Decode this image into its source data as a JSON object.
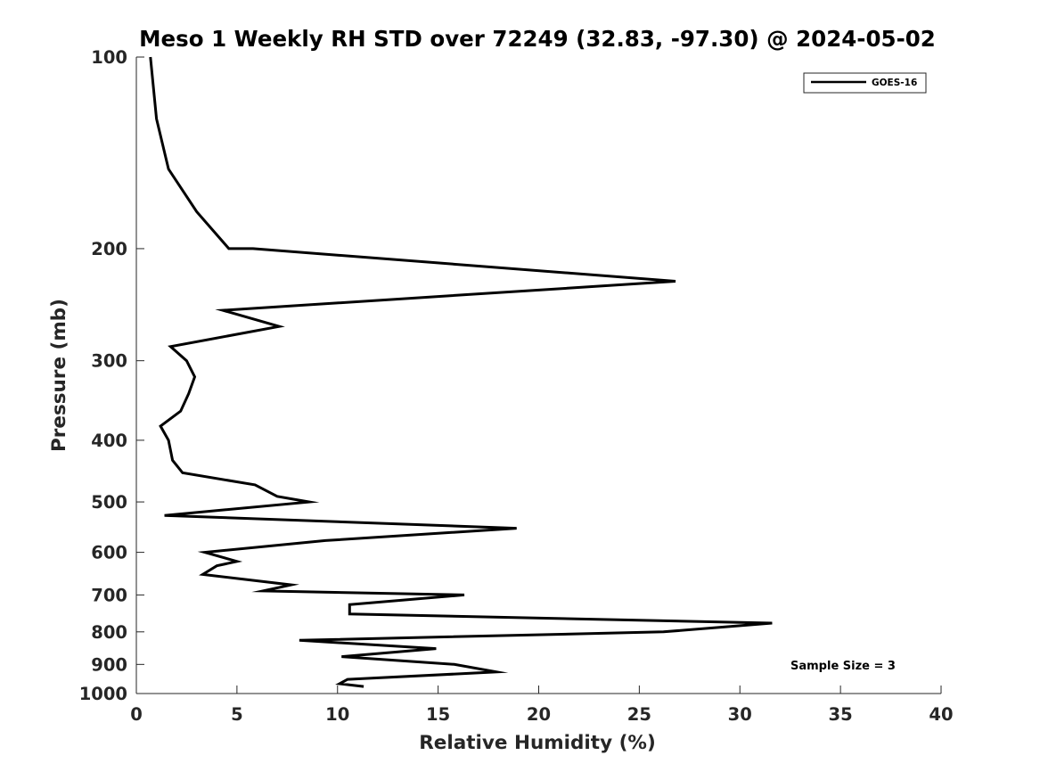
{
  "chart_data": {
    "type": "line",
    "title": "Meso 1 Weekly RH STD over 72249 (32.83, -97.30) @ 2024-05-02",
    "xlabel": "Relative Humidity (%)",
    "ylabel": "Pressure (mb)",
    "xlim": [
      0,
      40
    ],
    "ylim": [
      100,
      1000
    ],
    "yscale": "log",
    "y_reversed": true,
    "xticks": [
      "0",
      "5",
      "10",
      "15",
      "20",
      "25",
      "30",
      "35",
      "40"
    ],
    "yticks": [
      "100",
      "200",
      "300",
      "400",
      "500",
      "600",
      "700",
      "800",
      "900",
      "1000"
    ],
    "grid": false,
    "legend_position": "top-right",
    "annotation": "Sample Size = 3",
    "series": [
      {
        "name": "GOES-16",
        "color": "#000000",
        "points": [
          [
            0.7,
            100
          ],
          [
            1.0,
            125
          ],
          [
            1.6,
            150
          ],
          [
            3.0,
            175
          ],
          [
            4.6,
            200
          ],
          [
            5.8,
            200
          ],
          [
            26.8,
            225
          ],
          [
            4.3,
            250
          ],
          [
            7.1,
            265
          ],
          [
            1.7,
            285
          ],
          [
            2.5,
            300
          ],
          [
            2.9,
            318
          ],
          [
            2.6,
            338
          ],
          [
            2.2,
            360
          ],
          [
            1.2,
            380
          ],
          [
            1.6,
            400
          ],
          [
            1.8,
            430
          ],
          [
            2.3,
            450
          ],
          [
            5.9,
            470
          ],
          [
            7.0,
            490
          ],
          [
            8.6,
            500
          ],
          [
            1.4,
            525
          ],
          [
            18.9,
            550
          ],
          [
            9.4,
            575
          ],
          [
            3.4,
            600
          ],
          [
            5.0,
            620
          ],
          [
            4.0,
            630
          ],
          [
            3.3,
            650
          ],
          [
            7.7,
            675
          ],
          [
            6.3,
            690
          ],
          [
            16.3,
            700
          ],
          [
            10.6,
            725
          ],
          [
            10.6,
            750
          ],
          [
            31.6,
            775
          ],
          [
            26.2,
            800
          ],
          [
            8.1,
            825
          ],
          [
            14.9,
            850
          ],
          [
            10.2,
            875
          ],
          [
            15.8,
            900
          ],
          [
            17.9,
            925
          ],
          [
            10.5,
            950
          ],
          [
            10.1,
            965
          ],
          [
            11.3,
            975
          ]
        ]
      }
    ]
  }
}
